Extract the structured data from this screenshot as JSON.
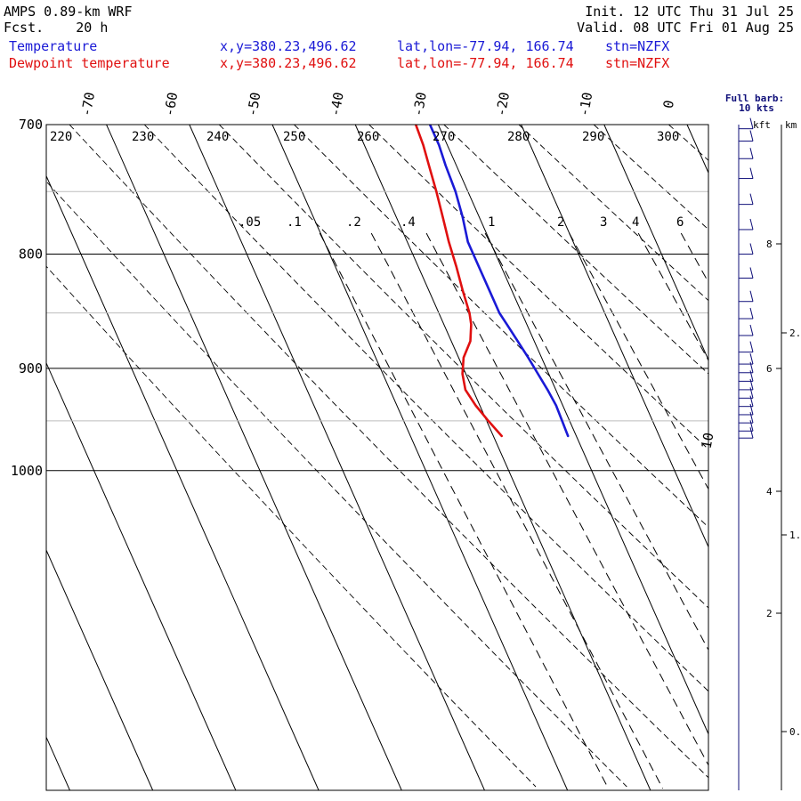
{
  "header": {
    "model": "AMPS 0.89-km WRF",
    "forecast": "Fcst.    20 h",
    "init": "Init. 12 UTC Thu 31 Jul 25",
    "valid": "Valid. 08 UTC Fri 01 Aug 25",
    "temp_label": "Temperature",
    "dew_label": "Dewpoint temperature",
    "xy_text": "x,y=380.23,496.62",
    "latlon_text": "lat,lon=-77.94, 166.74",
    "station_text": "stn=NZFX"
  },
  "barb_legend": {
    "line1": "Full barb:",
    "line2": "10 kts"
  },
  "colors": {
    "temperature": "#1a1ad6",
    "dewpoint": "#e01010",
    "barb": "#10107a",
    "grid": "#000000"
  },
  "chart_data": {
    "type": "line",
    "chart_kind": "skew-T log-p diagram",
    "pressure_ticks": [
      "700",
      "800",
      "900",
      "1000"
    ],
    "minor_isobars": [
      750,
      850,
      950
    ],
    "isotherm_labels": [
      "-70",
      "-60",
      "-50",
      "-40",
      "-30",
      "-20",
      "-10",
      "0",
      "10"
    ],
    "dry_adiabat_labels": [
      "220",
      "230",
      "240",
      "250",
      "260",
      "270",
      "280",
      "290",
      "300"
    ],
    "mixing_ratio_labels": [
      ".05",
      ".1",
      ".2",
      ".4",
      "1",
      "2",
      "3",
      "4",
      "6"
    ],
    "series": [
      {
        "name": "Temperature",
        "pressure_hpa": [
          965,
          950,
          935,
          920,
          905,
          890,
          875,
          860,
          850,
          830,
          810,
          790,
          770,
          750,
          730,
          715,
          700
        ],
        "temp_c": [
          -31.0,
          -30.9,
          -30.8,
          -31.0,
          -31.3,
          -31.6,
          -32.0,
          -32.4,
          -32.7,
          -32.7,
          -32.7,
          -32.7,
          -32.0,
          -31.5,
          -31.3,
          -31.0,
          -31.0
        ]
      },
      {
        "name": "Dewpoint temperature",
        "pressure_hpa": [
          965,
          950,
          935,
          920,
          905,
          890,
          875,
          860,
          850,
          830,
          810,
          790,
          770,
          750,
          730,
          715,
          700
        ],
        "temp_c": [
          -39.0,
          -39.8,
          -40.5,
          -40.9,
          -40.4,
          -39.4,
          -37.7,
          -36.7,
          -36.3,
          -35.9,
          -35.4,
          -35.0,
          -34.4,
          -33.8,
          -33.3,
          -32.9,
          -32.7
        ]
      }
    ],
    "height_axis_kft": [
      "2",
      "4",
      "6",
      "8"
    ],
    "height_axis_km": [
      "0.",
      "1.",
      "2."
    ],
    "axis_units": [
      "kft",
      "km"
    ],
    "wind_barbs": {
      "pressure_hpa": [
        967,
        960,
        952,
        944,
        936,
        928,
        920,
        912,
        904,
        896,
        885,
        870,
        855,
        840,
        820,
        800,
        780,
        760,
        740,
        725,
        712,
        703
      ],
      "speed_kts": [
        10,
        10,
        10,
        10,
        10,
        10,
        10,
        10,
        10,
        10,
        10,
        10,
        10,
        10,
        10,
        10,
        10,
        10,
        10,
        10,
        10,
        10
      ]
    }
  }
}
